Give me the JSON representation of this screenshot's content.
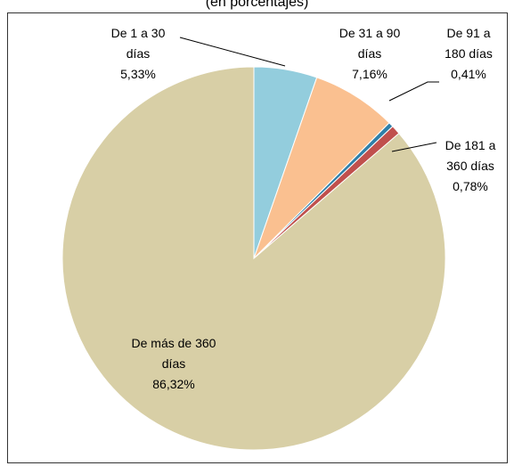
{
  "chart_data": {
    "type": "pie",
    "subtitle": "(en porcentajes)",
    "categories": [
      "De 1 a 30 días",
      "De 31 a 90 días",
      "De 91 a 180 días",
      "De 181 a 360 días",
      "De más de 360 días"
    ],
    "values": [
      5.33,
      7.16,
      0.41,
      0.78,
      86.32
    ],
    "value_labels": [
      "5,33%",
      "7,16%",
      "0,41%",
      "0,78%",
      "86,32%"
    ],
    "colors": [
      "#93cddd",
      "#fac090",
      "#2f7fa8",
      "#c0504d",
      "#d8cfa6"
    ]
  }
}
